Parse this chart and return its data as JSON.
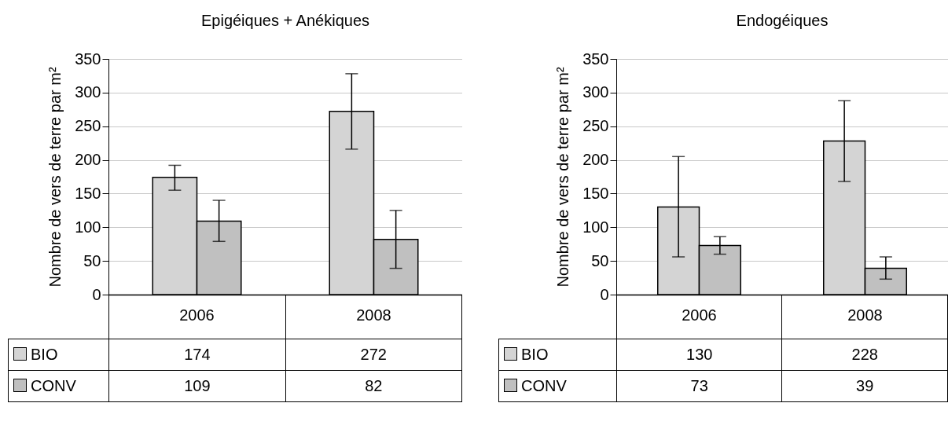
{
  "chart_data": [
    {
      "type": "bar",
      "title": "Epigéiques + Anékiques",
      "ylabel": "Nombre de vers de terre par m²",
      "categories": [
        "2006",
        "2008"
      ],
      "series": [
        {
          "name": "BIO",
          "color": "#d4d4d4",
          "values": [
            174,
            272
          ],
          "errors": [
            [
              155,
              192
            ],
            [
              216,
              328
            ]
          ]
        },
        {
          "name": "CONV",
          "color": "#c0c0c0",
          "values": [
            109,
            82
          ],
          "errors": [
            [
              79,
              140
            ],
            [
              39,
              125
            ]
          ]
        }
      ],
      "ylim": [
        0,
        350
      ],
      "yticks": [
        0,
        50,
        100,
        150,
        200,
        250,
        300,
        350
      ],
      "grid": "y",
      "legend": "bottom",
      "data_labels": true
    },
    {
      "type": "bar",
      "title": "Endogéiques",
      "ylabel": "Nombre de vers de terre par m²",
      "categories": [
        "2006",
        "2008"
      ],
      "series": [
        {
          "name": "BIO",
          "color": "#d4d4d4",
          "values": [
            130,
            228
          ],
          "errors": [
            [
              56,
              205
            ],
            [
              168,
              288
            ]
          ]
        },
        {
          "name": "CONV",
          "color": "#c0c0c0",
          "values": [
            73,
            39
          ],
          "errors": [
            [
              60,
              86
            ],
            [
              23,
              56
            ]
          ]
        }
      ],
      "ylim": [
        0,
        350
      ],
      "yticks": [
        0,
        50,
        100,
        150,
        200,
        250,
        300,
        350
      ],
      "grid": "y",
      "legend": "bottom",
      "data_labels": true
    }
  ]
}
